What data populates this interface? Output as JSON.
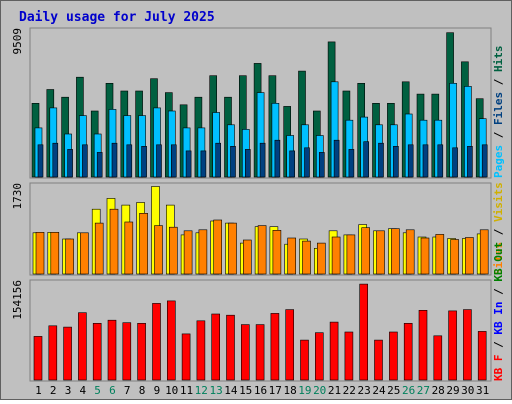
{
  "title": "Daily usage for July 2025",
  "colors": {
    "background": "#c0c0c0",
    "title": "#0000cc",
    "hits": "#006040",
    "files": "#00c0ff",
    "pages": "#004080",
    "visits": "#ffff00",
    "sites": "#ff8000",
    "kbin": "#008000",
    "kbout": "#0000ff",
    "kbf": "#ff0000",
    "weekend_day": "#00805c"
  },
  "panels": {
    "top": {
      "max_label": "9509",
      "right_label": {
        "pages": "Pages",
        "sep1": " / ",
        "files": "Files",
        "sep2": " / ",
        "hits": "Hits"
      }
    },
    "middle": {
      "max_label": "1730",
      "right_label": {
        "sites": "Sites",
        "sep1": " / ",
        "visits": "Visits"
      }
    },
    "bottom": {
      "max_label": "154156",
      "right_label": {
        "kbf": "KB F",
        "sep1": " / ",
        "kbin": "KB In",
        "sep2": " / ",
        "kbout": "KB Out"
      }
    }
  },
  "chart_data": {
    "type": "bar",
    "title": "Daily usage for July 2025",
    "categories": [
      "1",
      "2",
      "3",
      "4",
      "5",
      "6",
      "7",
      "8",
      "9",
      "10",
      "11",
      "12",
      "13",
      "14",
      "15",
      "16",
      "17",
      "18",
      "19",
      "20",
      "21",
      "22",
      "23",
      "24",
      "25",
      "26",
      "27",
      "28",
      "29",
      "30",
      "31"
    ],
    "weekend_days": [
      "5",
      "6",
      "12",
      "13",
      "19",
      "20",
      "26",
      "27"
    ],
    "top": {
      "ymax": 9509,
      "series": [
        {
          "name": "Hits",
          "values": [
            4800,
            5700,
            5200,
            6500,
            4300,
            6100,
            5600,
            5600,
            6400,
            5500,
            4700,
            5200,
            6600,
            5200,
            6600,
            7400,
            6600,
            4600,
            6900,
            4300,
            8800,
            5600,
            6100,
            4800,
            4800,
            6200,
            5400,
            5400,
            9400,
            7500,
            5100
          ]
        },
        {
          "name": "Files",
          "values": [
            3200,
            4500,
            2800,
            4000,
            2800,
            4400,
            4000,
            4000,
            4500,
            4300,
            3200,
            3200,
            4200,
            3400,
            3100,
            5500,
            4800,
            2700,
            3400,
            2700,
            6200,
            3700,
            3900,
            3400,
            3400,
            4100,
            3700,
            3700,
            6100,
            5900,
            3800
          ]
        },
        {
          "name": "Pages",
          "values": [
            2100,
            2200,
            1800,
            2100,
            1600,
            2200,
            2100,
            2000,
            2100,
            2100,
            1700,
            1700,
            2200,
            2000,
            1800,
            2200,
            2400,
            1700,
            1900,
            1600,
            2400,
            1800,
            2300,
            2200,
            2000,
            2100,
            2100,
            2100,
            1900,
            2000,
            2100
          ]
        }
      ]
    },
    "middle": {
      "ymax": 1730,
      "series": [
        {
          "name": "Visits",
          "values": [
            800,
            810,
            680,
            800,
            1260,
            1470,
            1340,
            1390,
            1700,
            1340,
            760,
            800,
            1030,
            990,
            600,
            920,
            920,
            580,
            680,
            500,
            840,
            760,
            960,
            840,
            880,
            800,
            720,
            720,
            690,
            690,
            780
          ]
        },
        {
          "name": "Sites",
          "values": [
            810,
            810,
            680,
            800,
            990,
            1260,
            1010,
            1180,
            940,
            910,
            840,
            860,
            1050,
            990,
            660,
            940,
            850,
            700,
            640,
            600,
            720,
            760,
            900,
            840,
            880,
            860,
            700,
            770,
            670,
            710,
            860
          ]
        }
      ]
    },
    "bottom": {
      "ymax": 154156,
      "series": [
        {
          "name": "KB F",
          "values": [
            70000,
            87000,
            85000,
            108000,
            91000,
            96000,
            92000,
            91000,
            123000,
            127000,
            74000,
            95000,
            106000,
            104000,
            89000,
            89000,
            107000,
            113000,
            64000,
            76000,
            93000,
            77000,
            154000,
            64000,
            77000,
            91000,
            112000,
            71000,
            111000,
            113000,
            78000
          ]
        }
      ]
    },
    "grid": false,
    "legend_position": "right"
  }
}
